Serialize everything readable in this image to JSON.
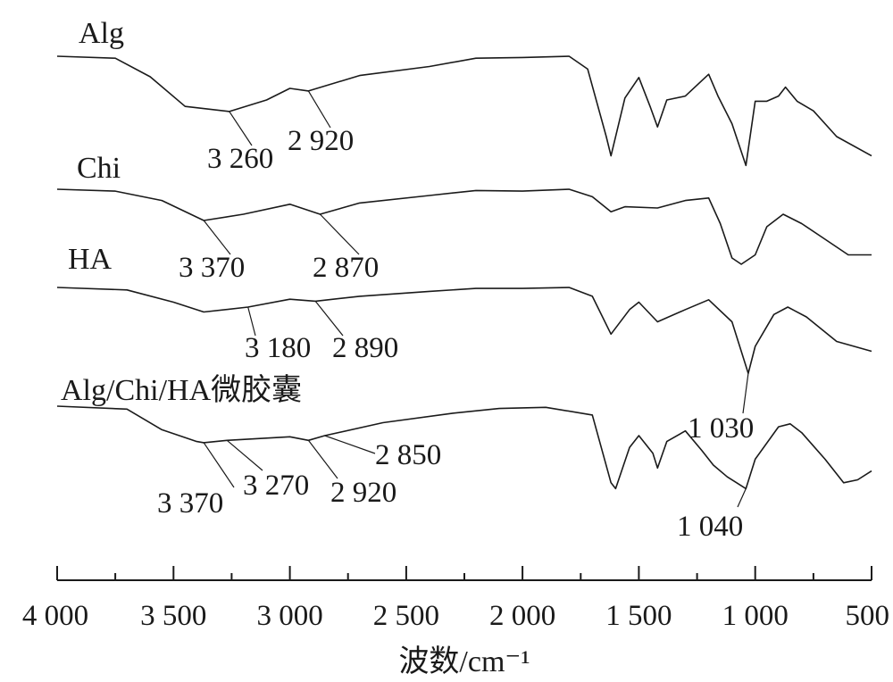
{
  "chart_data": {
    "type": "line",
    "xlabel": "波数/cm⁻¹",
    "ylabel": "",
    "xlim": [
      4000,
      500
    ],
    "x_ticks": [
      4000,
      3500,
      3000,
      2500,
      2000,
      1500,
      1000,
      500
    ],
    "x_tick_labels": [
      "4 000",
      "3 500",
      "3 000",
      "2 500",
      "2 000",
      "1 500",
      "1 000",
      "500"
    ],
    "series": [
      {
        "name": "Alg",
        "points": [
          [
            4000,
            0.0
          ],
          [
            3750,
            0.03
          ],
          [
            3600,
            0.32
          ],
          [
            3450,
            0.78
          ],
          [
            3260,
            0.86
          ],
          [
            3100,
            0.68
          ],
          [
            3000,
            0.5
          ],
          [
            2920,
            0.54
          ],
          [
            2700,
            0.3
          ],
          [
            2400,
            0.16
          ],
          [
            2200,
            0.03
          ],
          [
            2000,
            0.02
          ],
          [
            1800,
            0.0
          ],
          [
            1720,
            0.2
          ],
          [
            1640,
            1.25
          ],
          [
            1620,
            1.55
          ],
          [
            1560,
            0.65
          ],
          [
            1500,
            0.33
          ],
          [
            1450,
            0.8
          ],
          [
            1420,
            1.1
          ],
          [
            1380,
            0.68
          ],
          [
            1300,
            0.62
          ],
          [
            1230,
            0.38
          ],
          [
            1200,
            0.28
          ],
          [
            1160,
            0.62
          ],
          [
            1100,
            1.05
          ],
          [
            1040,
            1.7
          ],
          [
            1000,
            0.7
          ],
          [
            950,
            0.7
          ],
          [
            900,
            0.62
          ],
          [
            870,
            0.48
          ],
          [
            820,
            0.7
          ],
          [
            750,
            0.85
          ],
          [
            650,
            1.25
          ],
          [
            500,
            1.55
          ]
        ],
        "annotations": [
          {
            "text": "3 260",
            "x": 3260
          },
          {
            "text": "2 920",
            "x": 2920
          }
        ]
      },
      {
        "name": "Chi",
        "points": [
          [
            4000,
            0.0
          ],
          [
            3750,
            0.03
          ],
          [
            3550,
            0.18
          ],
          [
            3370,
            0.5
          ],
          [
            3200,
            0.4
          ],
          [
            3000,
            0.24
          ],
          [
            2870,
            0.4
          ],
          [
            2700,
            0.22
          ],
          [
            2400,
            0.1
          ],
          [
            2200,
            0.02
          ],
          [
            2000,
            0.03
          ],
          [
            1800,
            0.0
          ],
          [
            1700,
            0.12
          ],
          [
            1620,
            0.36
          ],
          [
            1560,
            0.28
          ],
          [
            1420,
            0.3
          ],
          [
            1300,
            0.18
          ],
          [
            1200,
            0.14
          ],
          [
            1150,
            0.55
          ],
          [
            1100,
            1.1
          ],
          [
            1060,
            1.2
          ],
          [
            1000,
            1.05
          ],
          [
            950,
            0.6
          ],
          [
            880,
            0.4
          ],
          [
            800,
            0.55
          ],
          [
            700,
            0.8
          ],
          [
            600,
            1.05
          ],
          [
            500,
            1.05
          ]
        ]
      },
      {
        "name": "HA",
        "points": [
          [
            4000,
            0.0
          ],
          [
            3700,
            0.05
          ],
          [
            3500,
            0.3
          ],
          [
            3370,
            0.5
          ],
          [
            3180,
            0.4
          ],
          [
            3000,
            0.24
          ],
          [
            2890,
            0.28
          ],
          [
            2700,
            0.18
          ],
          [
            2400,
            0.08
          ],
          [
            2200,
            0.02
          ],
          [
            2000,
            0.02
          ],
          [
            1800,
            0.0
          ],
          [
            1700,
            0.18
          ],
          [
            1620,
            0.95
          ],
          [
            1540,
            0.45
          ],
          [
            1500,
            0.3
          ],
          [
            1420,
            0.7
          ],
          [
            1300,
            0.45
          ],
          [
            1200,
            0.25
          ],
          [
            1100,
            0.7
          ],
          [
            1030,
            1.75
          ],
          [
            1000,
            1.2
          ],
          [
            920,
            0.55
          ],
          [
            860,
            0.4
          ],
          [
            780,
            0.6
          ],
          [
            650,
            1.1
          ],
          [
            500,
            1.3
          ]
        ],
        "annotations": [
          {
            "text": "3 370",
            "x": 3370
          },
          {
            "text": "3 180",
            "x": 3180
          },
          {
            "text": "2 890",
            "x": 2890
          },
          {
            "text": "2 870",
            "x": 2870
          },
          {
            "text": "1 030",
            "x": 1030
          }
        ]
      },
      {
        "name": "Alg/Chi/HA微胶囊",
        "points": [
          [
            4000,
            0.0
          ],
          [
            3700,
            0.05
          ],
          [
            3550,
            0.4
          ],
          [
            3400,
            0.6
          ],
          [
            3370,
            0.62
          ],
          [
            3270,
            0.58
          ],
          [
            3000,
            0.52
          ],
          [
            2920,
            0.58
          ],
          [
            2850,
            0.5
          ],
          [
            2600,
            0.28
          ],
          [
            2300,
            0.12
          ],
          [
            2100,
            0.04
          ],
          [
            1900,
            0.02
          ],
          [
            1700,
            0.15
          ],
          [
            1620,
            1.3
          ],
          [
            1600,
            1.4
          ],
          [
            1540,
            0.7
          ],
          [
            1500,
            0.5
          ],
          [
            1440,
            0.8
          ],
          [
            1420,
            1.05
          ],
          [
            1380,
            0.6
          ],
          [
            1300,
            0.42
          ],
          [
            1230,
            0.75
          ],
          [
            1180,
            1.0
          ],
          [
            1120,
            1.2
          ],
          [
            1080,
            1.3
          ],
          [
            1040,
            1.4
          ],
          [
            1000,
            0.9
          ],
          [
            900,
            0.35
          ],
          [
            850,
            0.3
          ],
          [
            800,
            0.45
          ],
          [
            700,
            0.9
          ],
          [
            620,
            1.3
          ],
          [
            560,
            1.25
          ],
          [
            500,
            1.1
          ]
        ],
        "annotations": [
          {
            "text": "3 370",
            "x": 3370
          },
          {
            "text": "3 270",
            "x": 3270
          },
          {
            "text": "2 920",
            "x": 2920
          },
          {
            "text": "2 850",
            "x": 2850
          },
          {
            "text": "1 040",
            "x": 1040
          }
        ]
      }
    ],
    "grid": false,
    "legend": "none"
  }
}
